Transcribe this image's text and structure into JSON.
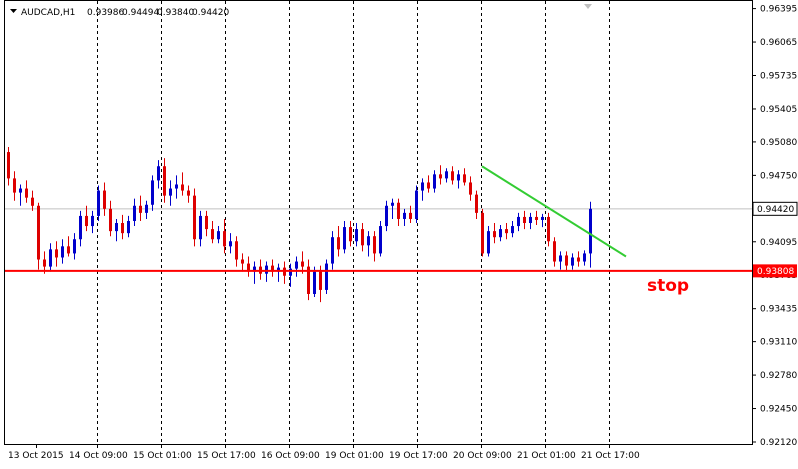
{
  "symbol_header": {
    "symbol": "AUDCAD,H1",
    "open": "0.93986",
    "high": "0.94494",
    "low": "0.93840",
    "close": "0.94420"
  },
  "colors": {
    "bull": "#0000cc",
    "bear": "#dd0000",
    "grid": "#000000",
    "stop_line": "#ff0000",
    "trend_line": "#33cc33",
    "price_line": "#c0c0c0"
  },
  "annotation": {
    "stop_label": "stop"
  },
  "price_badges": {
    "current": "0.94420",
    "stop": "0.93808"
  },
  "chart_data": {
    "type": "candlestick",
    "title": "AUDCAD,H1",
    "ylim": [
      0.9212,
      0.9646
    ],
    "y_ticks": [
      "0.96395",
      "0.96065",
      "0.95735",
      "0.95405",
      "0.95080",
      "0.94750",
      "0.94420",
      "0.94095",
      "0.93765",
      "0.93435",
      "0.93110",
      "0.92780",
      "0.92450",
      "0.92120"
    ],
    "x_ticks": [
      "13 Oct 2015",
      "14 Oct 09:00",
      "15 Oct 01:00",
      "15 Oct 17:00",
      "16 Oct 09:00",
      "19 Oct 01:00",
      "19 Oct 17:00",
      "20 Oct 09:00",
      "21 Oct 01:00",
      "21 Oct 17:00"
    ],
    "current_price": 0.9442,
    "stop_level": 0.93808,
    "trend_line": {
      "from": [
        79,
        0.9484
      ],
      "to": [
        103,
        0.9395
      ]
    },
    "candles": [
      {
        "o": 0.9498,
        "h": 0.9503,
        "l": 0.9465,
        "c": 0.9472
      },
      {
        "o": 0.9472,
        "h": 0.9479,
        "l": 0.945,
        "c": 0.9458
      },
      {
        "o": 0.9458,
        "h": 0.9466,
        "l": 0.9445,
        "c": 0.9462
      },
      {
        "o": 0.9462,
        "h": 0.947,
        "l": 0.9448,
        "c": 0.9453
      },
      {
        "o": 0.9453,
        "h": 0.946,
        "l": 0.944,
        "c": 0.9445
      },
      {
        "o": 0.9445,
        "h": 0.9448,
        "l": 0.9382,
        "c": 0.9392
      },
      {
        "o": 0.9392,
        "h": 0.94,
        "l": 0.9378,
        "c": 0.9385
      },
      {
        "o": 0.9385,
        "h": 0.9408,
        "l": 0.938,
        "c": 0.9402
      },
      {
        "o": 0.9402,
        "h": 0.941,
        "l": 0.9385,
        "c": 0.9394
      },
      {
        "o": 0.9394,
        "h": 0.9412,
        "l": 0.9388,
        "c": 0.9405
      },
      {
        "o": 0.9405,
        "h": 0.9415,
        "l": 0.9395,
        "c": 0.9398
      },
      {
        "o": 0.9398,
        "h": 0.9418,
        "l": 0.9392,
        "c": 0.9412
      },
      {
        "o": 0.9412,
        "h": 0.944,
        "l": 0.9405,
        "c": 0.9435
      },
      {
        "o": 0.9435,
        "h": 0.9445,
        "l": 0.942,
        "c": 0.9425
      },
      {
        "o": 0.9425,
        "h": 0.944,
        "l": 0.9418,
        "c": 0.9435
      },
      {
        "o": 0.9435,
        "h": 0.9465,
        "l": 0.943,
        "c": 0.946
      },
      {
        "o": 0.946,
        "h": 0.9468,
        "l": 0.9435,
        "c": 0.9442
      },
      {
        "o": 0.9442,
        "h": 0.945,
        "l": 0.9415,
        "c": 0.942
      },
      {
        "o": 0.942,
        "h": 0.9432,
        "l": 0.941,
        "c": 0.9428
      },
      {
        "o": 0.9428,
        "h": 0.9436,
        "l": 0.9412,
        "c": 0.9418
      },
      {
        "o": 0.9418,
        "h": 0.9435,
        "l": 0.9414,
        "c": 0.943
      },
      {
        "o": 0.943,
        "h": 0.9452,
        "l": 0.9425,
        "c": 0.9445
      },
      {
        "o": 0.9445,
        "h": 0.9455,
        "l": 0.943,
        "c": 0.9438
      },
      {
        "o": 0.9438,
        "h": 0.945,
        "l": 0.9432,
        "c": 0.9446
      },
      {
        "o": 0.9446,
        "h": 0.9475,
        "l": 0.944,
        "c": 0.947
      },
      {
        "o": 0.947,
        "h": 0.949,
        "l": 0.9462,
        "c": 0.9484
      },
      {
        "o": 0.9484,
        "h": 0.9492,
        "l": 0.9448,
        "c": 0.9455
      },
      {
        "o": 0.9455,
        "h": 0.947,
        "l": 0.9445,
        "c": 0.9462
      },
      {
        "o": 0.9462,
        "h": 0.9475,
        "l": 0.9452,
        "c": 0.9466
      },
      {
        "o": 0.9466,
        "h": 0.9478,
        "l": 0.9455,
        "c": 0.946
      },
      {
        "o": 0.946,
        "h": 0.9465,
        "l": 0.9448,
        "c": 0.9455
      },
      {
        "o": 0.9455,
        "h": 0.9462,
        "l": 0.9405,
        "c": 0.9412
      },
      {
        "o": 0.9412,
        "h": 0.944,
        "l": 0.9405,
        "c": 0.9435
      },
      {
        "o": 0.9435,
        "h": 0.944,
        "l": 0.9415,
        "c": 0.9422
      },
      {
        "o": 0.9422,
        "h": 0.943,
        "l": 0.9408,
        "c": 0.9412
      },
      {
        "o": 0.9412,
        "h": 0.9425,
        "l": 0.9408,
        "c": 0.942
      },
      {
        "o": 0.942,
        "h": 0.9432,
        "l": 0.9398,
        "c": 0.9405
      },
      {
        "o": 0.9405,
        "h": 0.9418,
        "l": 0.9398,
        "c": 0.941
      },
      {
        "o": 0.941,
        "h": 0.9415,
        "l": 0.9385,
        "c": 0.9392
      },
      {
        "o": 0.9392,
        "h": 0.9398,
        "l": 0.938,
        "c": 0.9388
      },
      {
        "o": 0.9388,
        "h": 0.9395,
        "l": 0.9375,
        "c": 0.938
      },
      {
        "o": 0.938,
        "h": 0.939,
        "l": 0.9368,
        "c": 0.9385
      },
      {
        "o": 0.9385,
        "h": 0.9392,
        "l": 0.9372,
        "c": 0.9378
      },
      {
        "o": 0.9378,
        "h": 0.939,
        "l": 0.937,
        "c": 0.9386
      },
      {
        "o": 0.9386,
        "h": 0.9392,
        "l": 0.9375,
        "c": 0.938
      },
      {
        "o": 0.938,
        "h": 0.9388,
        "l": 0.937,
        "c": 0.9384
      },
      {
        "o": 0.9384,
        "h": 0.939,
        "l": 0.9368,
        "c": 0.9376
      },
      {
        "o": 0.9376,
        "h": 0.9388,
        "l": 0.9365,
        "c": 0.9383
      },
      {
        "o": 0.9383,
        "h": 0.9395,
        "l": 0.9375,
        "c": 0.939
      },
      {
        "o": 0.939,
        "h": 0.94,
        "l": 0.9378,
        "c": 0.9385
      },
      {
        "o": 0.9385,
        "h": 0.9392,
        "l": 0.9352,
        "c": 0.9358
      },
      {
        "o": 0.9358,
        "h": 0.9385,
        "l": 0.9355,
        "c": 0.938
      },
      {
        "o": 0.938,
        "h": 0.9386,
        "l": 0.935,
        "c": 0.9362
      },
      {
        "o": 0.9362,
        "h": 0.9392,
        "l": 0.9358,
        "c": 0.9388
      },
      {
        "o": 0.9388,
        "h": 0.942,
        "l": 0.9382,
        "c": 0.9414
      },
      {
        "o": 0.9414,
        "h": 0.9425,
        "l": 0.9395,
        "c": 0.9402
      },
      {
        "o": 0.9402,
        "h": 0.943,
        "l": 0.9398,
        "c": 0.9424
      },
      {
        "o": 0.9424,
        "h": 0.943,
        "l": 0.9405,
        "c": 0.941
      },
      {
        "o": 0.941,
        "h": 0.9428,
        "l": 0.9405,
        "c": 0.9422
      },
      {
        "o": 0.9422,
        "h": 0.9428,
        "l": 0.94,
        "c": 0.9406
      },
      {
        "o": 0.9406,
        "h": 0.942,
        "l": 0.9395,
        "c": 0.9415
      },
      {
        "o": 0.9415,
        "h": 0.942,
        "l": 0.939,
        "c": 0.9398
      },
      {
        "o": 0.9398,
        "h": 0.943,
        "l": 0.9395,
        "c": 0.9425
      },
      {
        "o": 0.9425,
        "h": 0.945,
        "l": 0.942,
        "c": 0.9445
      },
      {
        "o": 0.9445,
        "h": 0.9452,
        "l": 0.9432,
        "c": 0.9448
      },
      {
        "o": 0.9448,
        "h": 0.9452,
        "l": 0.9425,
        "c": 0.9432
      },
      {
        "o": 0.9432,
        "h": 0.9442,
        "l": 0.9425,
        "c": 0.9438
      },
      {
        "o": 0.9438,
        "h": 0.9445,
        "l": 0.9428,
        "c": 0.9432
      },
      {
        "o": 0.9432,
        "h": 0.9465,
        "l": 0.9428,
        "c": 0.946
      },
      {
        "o": 0.946,
        "h": 0.9472,
        "l": 0.945,
        "c": 0.9468
      },
      {
        "o": 0.9468,
        "h": 0.9475,
        "l": 0.9458,
        "c": 0.9462
      },
      {
        "o": 0.9462,
        "h": 0.948,
        "l": 0.9458,
        "c": 0.9476
      },
      {
        "o": 0.9476,
        "h": 0.9485,
        "l": 0.9466,
        "c": 0.9472
      },
      {
        "o": 0.9472,
        "h": 0.9482,
        "l": 0.9468,
        "c": 0.9479
      },
      {
        "o": 0.9479,
        "h": 0.9484,
        "l": 0.9466,
        "c": 0.947
      },
      {
        "o": 0.947,
        "h": 0.948,
        "l": 0.9462,
        "c": 0.9476
      },
      {
        "o": 0.9476,
        "h": 0.9482,
        "l": 0.9465,
        "c": 0.9468
      },
      {
        "o": 0.9468,
        "h": 0.9474,
        "l": 0.945,
        "c": 0.9456
      },
      {
        "o": 0.9456,
        "h": 0.946,
        "l": 0.9432,
        "c": 0.9438
      },
      {
        "o": 0.9438,
        "h": 0.9442,
        "l": 0.9395,
        "c": 0.9398
      },
      {
        "o": 0.9398,
        "h": 0.9425,
        "l": 0.9395,
        "c": 0.942
      },
      {
        "o": 0.942,
        "h": 0.9428,
        "l": 0.9408,
        "c": 0.9414
      },
      {
        "o": 0.9414,
        "h": 0.9426,
        "l": 0.941,
        "c": 0.9422
      },
      {
        "o": 0.9422,
        "h": 0.9428,
        "l": 0.9412,
        "c": 0.9418
      },
      {
        "o": 0.9418,
        "h": 0.943,
        "l": 0.9414,
        "c": 0.9425
      },
      {
        "o": 0.9425,
        "h": 0.9438,
        "l": 0.942,
        "c": 0.9434
      },
      {
        "o": 0.9434,
        "h": 0.944,
        "l": 0.9422,
        "c": 0.9428
      },
      {
        "o": 0.9428,
        "h": 0.9438,
        "l": 0.9422,
        "c": 0.9434
      },
      {
        "o": 0.9434,
        "h": 0.944,
        "l": 0.9426,
        "c": 0.9431
      },
      {
        "o": 0.9431,
        "h": 0.9437,
        "l": 0.9424,
        "c": 0.9434
      },
      {
        "o": 0.9434,
        "h": 0.9438,
        "l": 0.9405,
        "c": 0.941
      },
      {
        "o": 0.941,
        "h": 0.9414,
        "l": 0.9385,
        "c": 0.939
      },
      {
        "o": 0.939,
        "h": 0.94,
        "l": 0.9382,
        "c": 0.9396
      },
      {
        "o": 0.9396,
        "h": 0.94,
        "l": 0.938,
        "c": 0.9386
      },
      {
        "o": 0.9386,
        "h": 0.9398,
        "l": 0.9382,
        "c": 0.9394
      },
      {
        "o": 0.9394,
        "h": 0.94,
        "l": 0.9385,
        "c": 0.939
      },
      {
        "o": 0.939,
        "h": 0.9401,
        "l": 0.9386,
        "c": 0.9398
      },
      {
        "o": 0.9398,
        "h": 0.9449,
        "l": 0.9384,
        "c": 0.9442
      }
    ]
  }
}
